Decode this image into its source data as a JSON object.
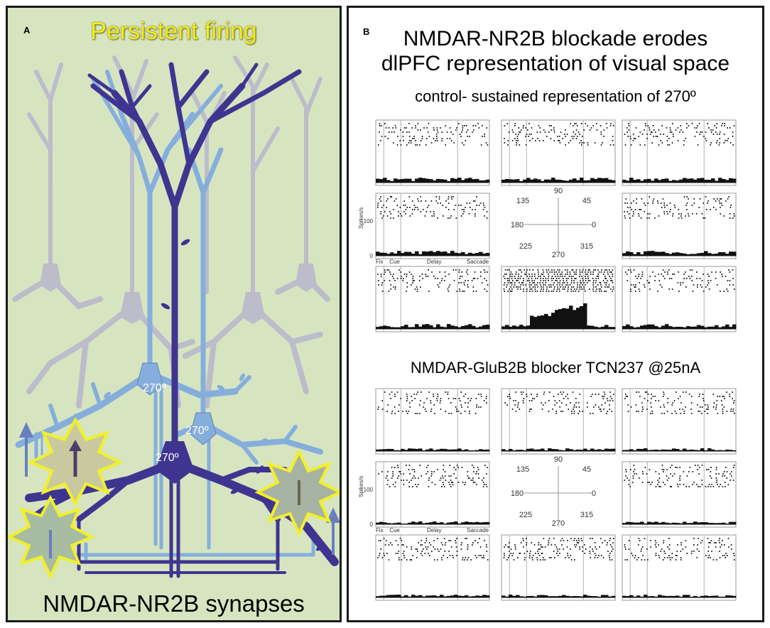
{
  "panel_a": {
    "letter": "A",
    "title": "Persistent firing",
    "bottom_label": "NMDAR-NR2B synapses",
    "angle_labels": [
      "270º",
      "270º",
      "270º"
    ]
  },
  "panel_b": {
    "letter": "B",
    "title_line1": "NMDAR-NR2B blockade erodes",
    "title_line2": "dlPFC representation of visual space",
    "control_label": "control- sustained representation of 270º",
    "blocker_label": "NMDAR-GluB2B blocker TCN237 @25nA",
    "y_axis_label": "Spikes/s",
    "y_ticks": [
      "100",
      "0"
    ],
    "epochs": [
      "Fix",
      "Cue",
      "Delay",
      "Saccade"
    ],
    "directions": [
      "90",
      "45",
      "0",
      "315",
      "270",
      "225",
      "180",
      "135"
    ]
  },
  "colors": {
    "panel_a_bg": "#d6e5c0",
    "dark_neuron": "#3f3590",
    "light_neuron": "#86aedc",
    "grey_neuron": "#b9b5cc",
    "title_yellow": "#f3ec1e"
  }
}
